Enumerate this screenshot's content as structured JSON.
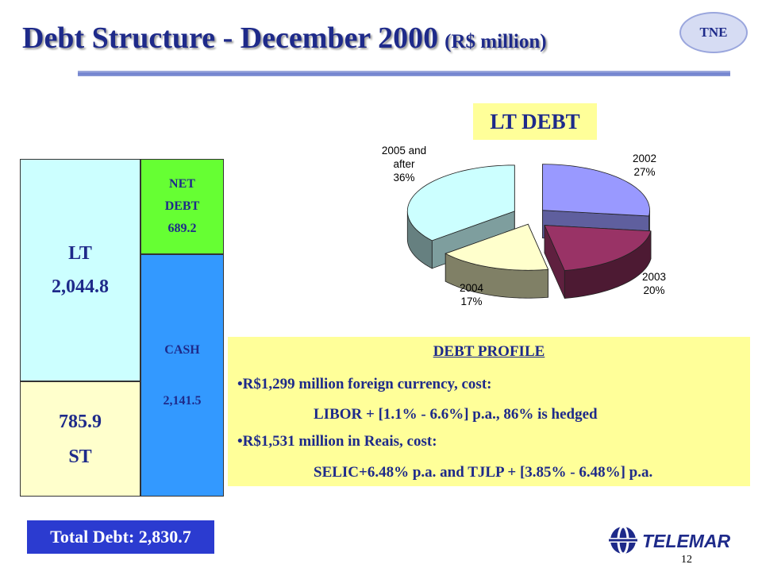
{
  "header": {
    "title": "Debt Structure - December 2000",
    "unit": "(R$ million)",
    "badge": "TNE"
  },
  "structure": {
    "lt_label": "LT",
    "lt_value": "2,044.8",
    "st_value": "785.9",
    "st_label": "ST",
    "net_debt_label_1": "NET",
    "net_debt_label_2": "DEBT",
    "net_debt_value": "689.2",
    "cash_label": "CASH",
    "cash_value": "2,141.5",
    "total": "Total Debt: 2,830.7",
    "colors": {
      "lt": "#ccffff",
      "st": "#ffffcc",
      "net_debt": "#66ff33",
      "cash": "#3399ff",
      "total_bg": "#2b3bd0"
    }
  },
  "pie_box_label": "LT DEBT",
  "chart_data": {
    "type": "pie",
    "title": "",
    "style": "exploded-3d",
    "slices": [
      {
        "label": "2002",
        "value": 27,
        "display": "27%",
        "color": "#9999ff"
      },
      {
        "label": "2003",
        "value": 20,
        "display": "20%",
        "color": "#993366"
      },
      {
        "label": "2004",
        "value": 17,
        "display": "17%",
        "color": "#ffffcc"
      },
      {
        "label": "2005 and after",
        "value": 36,
        "display": "36%",
        "color": "#ccffff"
      }
    ]
  },
  "profile": {
    "heading": "DEBT PROFILE",
    "line1": "•R$1,299 million foreign currency, cost:",
    "line2": "LIBOR + [1.1% - 6.6%] p.a., 86% is hedged",
    "line3": "•R$1,531 million in Reais, cost:",
    "line4": "SELIC+6.48% p.a. and TJLP + [3.85% - 6.48%] p.a."
  },
  "footer": {
    "logo_text": "TELEMAR",
    "page_number": "12"
  }
}
